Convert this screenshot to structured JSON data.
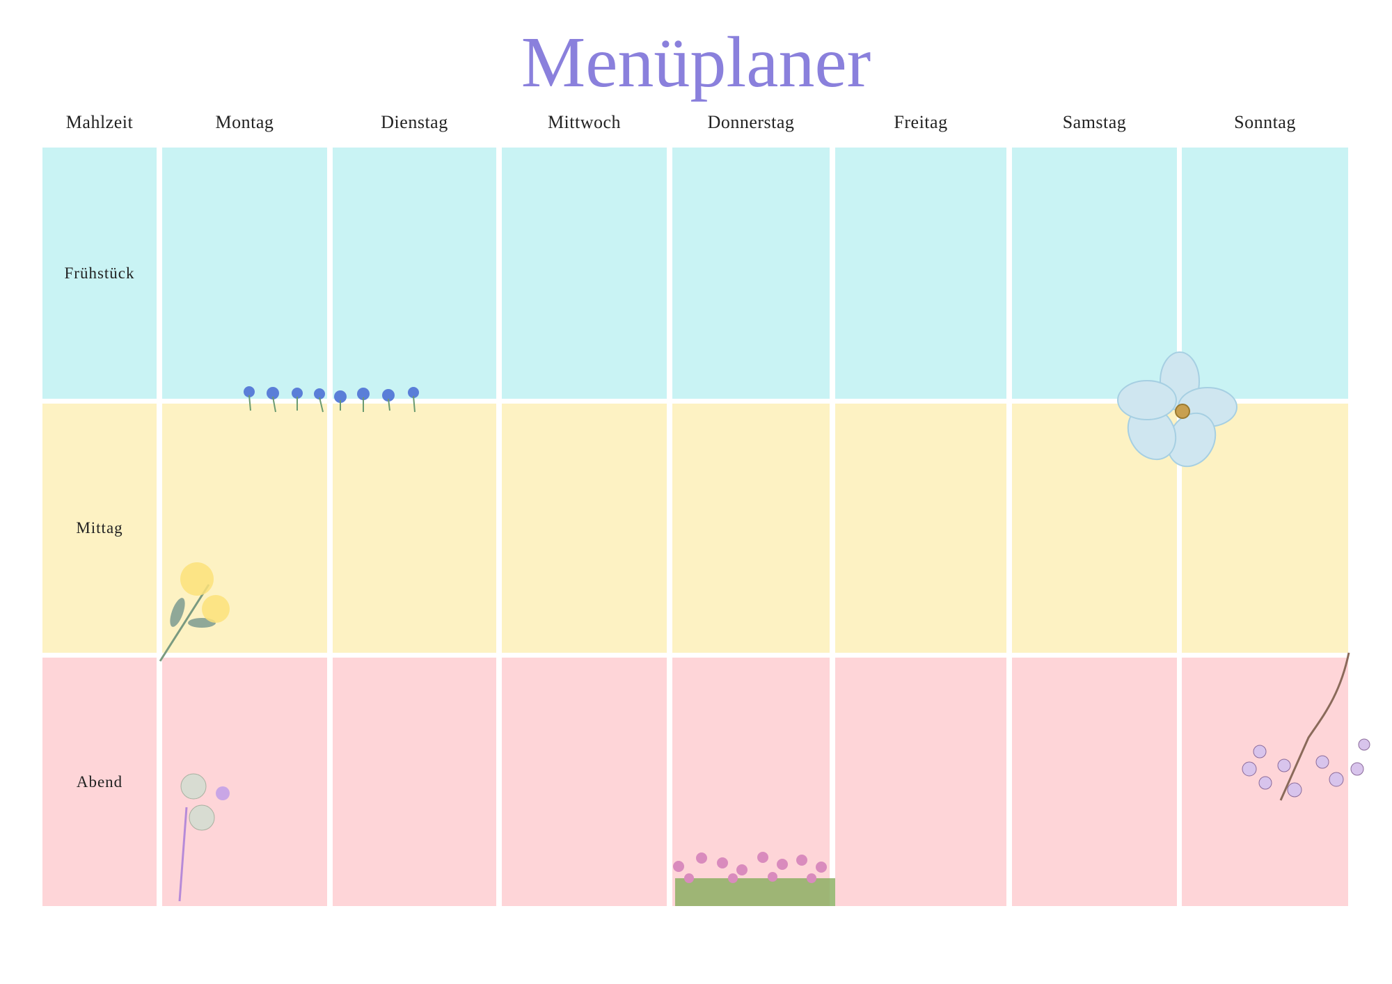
{
  "title": "Menüplaner",
  "headers": [
    "Mahlzeit",
    "Montag",
    "Dienstag",
    "Mittwoch",
    "Donnerstag",
    "Freitag",
    "Samstag",
    "Sonntag"
  ],
  "rows": [
    {
      "label": "Frühstück"
    },
    {
      "label": "Mittag"
    },
    {
      "label": "Abend"
    }
  ]
}
